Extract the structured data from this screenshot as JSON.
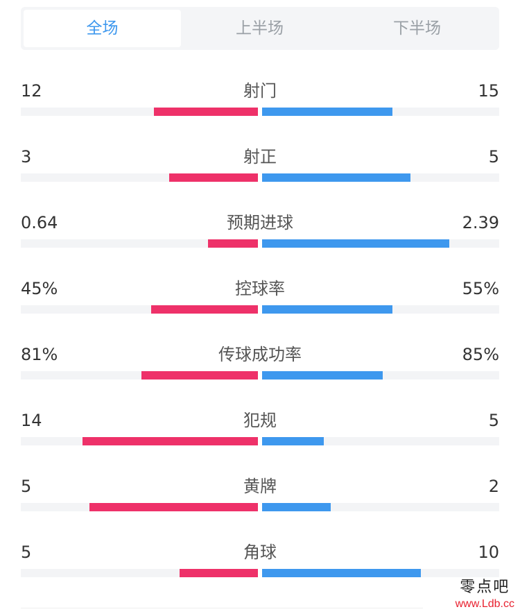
{
  "tabs": [
    {
      "label": "全场",
      "active": true
    },
    {
      "label": "上半场",
      "active": false
    },
    {
      "label": "下半场",
      "active": false
    }
  ],
  "colors": {
    "accent": "#3e98ee",
    "home_bar": "#ee3169",
    "away_bar": "#3e98ee",
    "track": "#f3f4f6"
  },
  "stats": [
    {
      "label": "射门",
      "home": "12",
      "away": "15",
      "home_fill": 0.44,
      "away_fill": 0.55
    },
    {
      "label": "射正",
      "home": "3",
      "away": "5",
      "home_fill": 0.375,
      "away_fill": 0.625
    },
    {
      "label": "预期进球",
      "home": "0.64",
      "away": "2.39",
      "home_fill": 0.21,
      "away_fill": 0.79
    },
    {
      "label": "控球率",
      "home": "45%",
      "away": "55%",
      "home_fill": 0.45,
      "away_fill": 0.55
    },
    {
      "label": "传球成功率",
      "home": "81%",
      "away": "85%",
      "home_fill": 0.49,
      "away_fill": 0.51
    },
    {
      "label": "犯规",
      "home": "14",
      "away": "5",
      "home_fill": 0.74,
      "away_fill": 0.26
    },
    {
      "label": "黄牌",
      "home": "5",
      "away": "2",
      "home_fill": 0.71,
      "away_fill": 0.29
    },
    {
      "label": "角球",
      "home": "5",
      "away": "10",
      "home_fill": 0.33,
      "away_fill": 0.67
    }
  ],
  "watermark": {
    "top": "零点吧",
    "bottom": "www.Ldb.cc"
  }
}
